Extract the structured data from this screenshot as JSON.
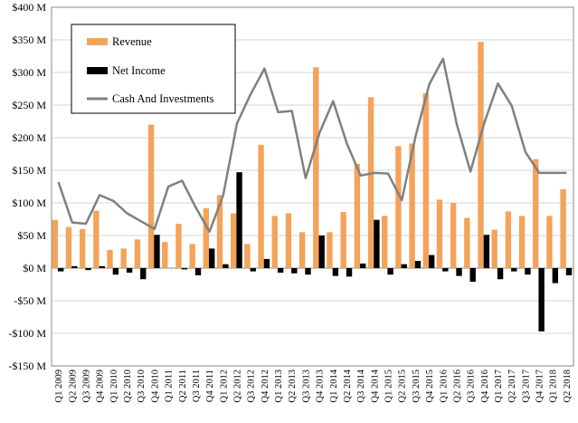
{
  "chart_data": {
    "type": "bar",
    "title": "",
    "xlabel": "",
    "ylabel": "",
    "ylim": [
      -150,
      400
    ],
    "y_ticks": [
      400,
      350,
      300,
      250,
      200,
      150,
      100,
      50,
      0,
      -50,
      -100,
      -150
    ],
    "y_tick_labels": [
      "$400 M",
      "$350 M",
      "$300 M",
      "$250 M",
      "$200 M",
      "$150 M",
      "$100 M",
      "$50 M",
      "$0 M",
      "-$50 M",
      "-$100 M",
      "-$150 M"
    ],
    "grid": {
      "horizontal": true,
      "vertical": false
    },
    "legend_position": "top-left",
    "categories": [
      "Q1 2009",
      "Q2 2009",
      "Q3 2009",
      "Q4 2009",
      "Q1 2010",
      "Q2 2010",
      "Q3 2010",
      "Q4 2010",
      "Q1 2011",
      "Q2 2011",
      "Q3 2011",
      "Q4 2011",
      "Q1 2012",
      "Q2 2012",
      "Q3 2012",
      "Q4 2012",
      "Q1 2013",
      "Q2 2013",
      "Q3 2013",
      "Q4 2013",
      "Q1 2014",
      "Q2 2014",
      "Q3 2014",
      "Q4 2014",
      "Q1 2015",
      "Q2 2015",
      "Q3 2015",
      "Q4 2015",
      "Q1 2016",
      "Q2 2016",
      "Q3 2016",
      "Q4 2016",
      "Q1 2017",
      "Q2 2017",
      "Q3 2017",
      "Q4 2017",
      "Q1 2018",
      "Q2 2018"
    ],
    "series": [
      {
        "name": "Revenue",
        "kind": "bar",
        "color": "#F4A35A",
        "values": [
          74,
          63,
          60,
          88,
          28,
          30,
          44,
          220,
          40,
          68,
          37,
          92,
          112,
          84,
          37,
          189,
          80,
          84,
          55,
          308,
          55,
          86,
          160,
          262,
          80,
          187,
          191,
          268,
          105,
          100,
          77,
          347,
          59,
          87,
          80,
          167,
          80,
          121
        ]
      },
      {
        "name": "Net Income",
        "kind": "bar",
        "color": "#000000",
        "values": [
          -5,
          3,
          -3,
          3,
          -10,
          -7,
          -17,
          51,
          0,
          -2,
          -11,
          30,
          6,
          147,
          -5,
          14,
          -7,
          -8,
          -10,
          50,
          -12,
          -13,
          7,
          74,
          -10,
          6,
          11,
          20,
          -5,
          -12,
          -21,
          51,
          -17,
          -5,
          -10,
          -97,
          -23,
          -11
        ]
      },
      {
        "name": "Cash And Investments",
        "kind": "line",
        "color": "#808080",
        "values": [
          132,
          70,
          68,
          112,
          103,
          84,
          72,
          60,
          125,
          134,
          93,
          56,
          112,
          222,
          267,
          306,
          239,
          241,
          138,
          207,
          256,
          191,
          142,
          146,
          145,
          104,
          202,
          282,
          321,
          221,
          148,
          222,
          283,
          249,
          178,
          146,
          146,
          146
        ]
      }
    ]
  }
}
